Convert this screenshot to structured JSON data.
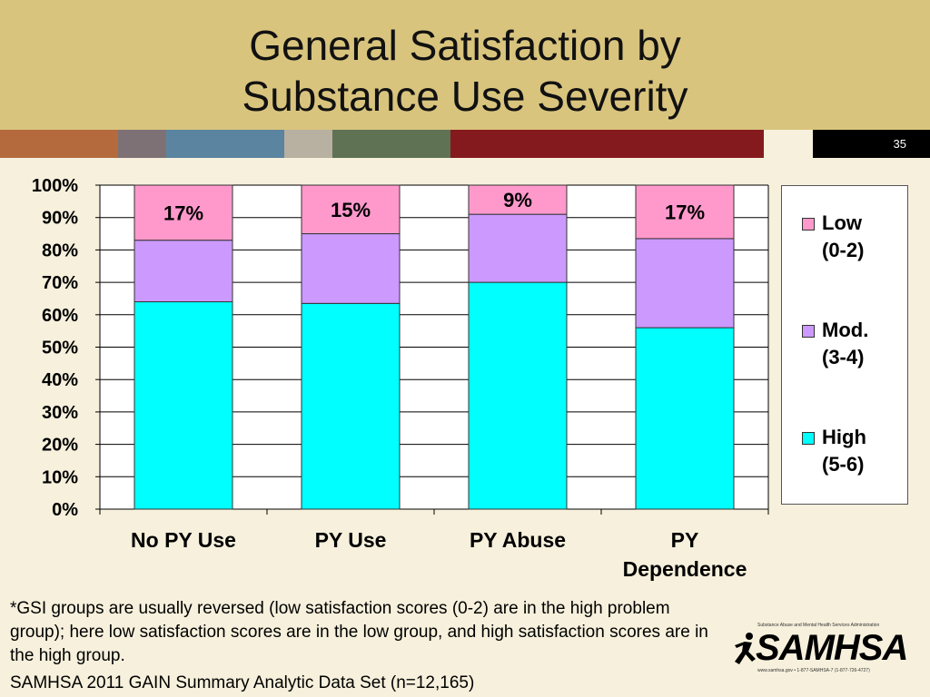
{
  "slide": {
    "title_line1": "General Satisfaction by",
    "title_line2": "Substance Use Severity",
    "page_number": "35"
  },
  "theme": {
    "header_bg": "#d9c47e",
    "strip_colors": [
      "#b46a3c",
      "#7d7176",
      "#5b84a0",
      "#b8b0a0",
      "#5f7254",
      "#851a1e",
      "#f6f0dc"
    ]
  },
  "chart_data": {
    "type": "bar",
    "stacked": true,
    "categories": [
      "No PY Use",
      "PY Use",
      "PY Abuse",
      "PY Dependence"
    ],
    "category_lines": [
      [
        "No PY Use"
      ],
      [
        "PY Use"
      ],
      [
        "PY Abuse"
      ],
      [
        "PY",
        "Dependence"
      ]
    ],
    "series": [
      {
        "name": "High (5-6)",
        "legend_lines": [
          "High",
          "(5-6)"
        ],
        "color": "#00ffff",
        "values": [
          64,
          63.5,
          70,
          56
        ]
      },
      {
        "name": "Mod. (3-4)",
        "legend_lines": [
          "Mod.",
          "(3-4)"
        ],
        "color": "#cc99ff",
        "values": [
          19,
          21.5,
          21,
          27.5
        ]
      },
      {
        "name": "Low (0-2)",
        "legend_lines": [
          "Low",
          "(0-2)"
        ],
        "color": "#ff99cc",
        "values": [
          17,
          15,
          9,
          16.5
        ]
      }
    ],
    "data_labels": [
      "17%",
      "15%",
      "9%",
      "17%"
    ],
    "yticks": [
      "0%",
      "10%",
      "20%",
      "30%",
      "40%",
      "50%",
      "60%",
      "70%",
      "80%",
      "90%",
      "100%"
    ],
    "ylim": [
      0,
      100
    ],
    "grid": true,
    "legend": "right"
  },
  "footnote": "*GSI groups are usually reversed (low satisfaction scores (0-2) are in the high problem group); here low satisfaction scores are in the low group, and high satisfaction scores are in the high group.",
  "source": "SAMHSA 2011 GAIN Summary Analytic Data Set (n=12,165)",
  "logo": {
    "agency": "Substance Abuse and Mental Health Services Administration",
    "name": "SAMHSA",
    "contact": "www.samhsa.gov • 1-877-SAMHSA-7 (1-877-726-4727)"
  }
}
